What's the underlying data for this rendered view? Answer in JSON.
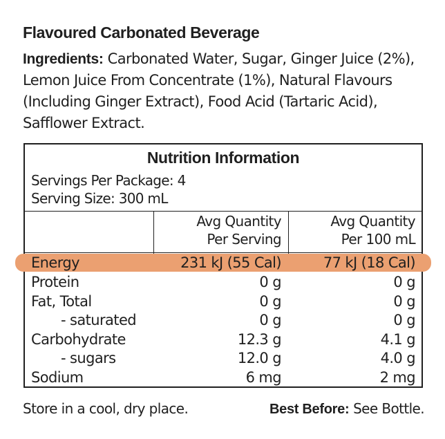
{
  "product_title": "Flavoured Carbonated Beverage",
  "ingredients": {
    "label": "Ingredients:",
    "text": " Carbonated Water, Sugar, Ginger Juice (2%), Lemon Juice From Concentrate (1%), Natural Flavours (Including Ginger Extract), Food Acid (Tartaric Acid), Safflower Extract."
  },
  "nutrition_panel": {
    "title": "Nutrition Information",
    "servings_per_package": "Servings Per Package: 4",
    "serving_size": "Serving Size: 300 mL",
    "columns": {
      "per_serving_line1": "Avg Quantity",
      "per_serving_line2": "Per Serving",
      "per_100_line1": "Avg Quantity",
      "per_100_line2": "Per 100 mL"
    },
    "highlight_color": "#eba071",
    "rows": [
      {
        "name": "Energy",
        "per_serving": "231 kJ (55 Cal)",
        "per_100ml": "77 kJ (18 Cal)",
        "highlighted": true
      },
      {
        "name": "Protein",
        "per_serving": "0 g",
        "per_100ml": "0 g"
      },
      {
        "name": "Fat, Total",
        "per_serving": "0 g",
        "per_100ml": "0 g"
      },
      {
        "name": "- saturated",
        "per_serving": "0 g",
        "per_100ml": "0 g",
        "indent": true
      },
      {
        "name": "Carbohydrate",
        "per_serving": "12.3 g",
        "per_100ml": "4.1 g"
      },
      {
        "name": "- sugars",
        "per_serving": "12.0 g",
        "per_100ml": "4.0 g",
        "indent": true
      },
      {
        "name": "Sodium",
        "per_serving": "6 mg",
        "per_100ml": "2 mg"
      }
    ]
  },
  "footer": {
    "storage": "Store in a cool, dry place.",
    "best_before_label": "Best Before:",
    "best_before_value": " See Bottle."
  }
}
